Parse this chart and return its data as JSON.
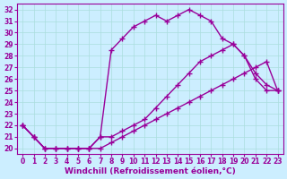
{
  "xlabel": "Windchill (Refroidissement éolien,°C)",
  "bg_color": "#cceeff",
  "line_color": "#990099",
  "grid_color": "#aadddd",
  "xlim": [
    -0.5,
    23.5
  ],
  "ylim": [
    19.5,
    32.5
  ],
  "yticks": [
    20,
    21,
    22,
    23,
    24,
    25,
    26,
    27,
    28,
    29,
    30,
    31,
    32
  ],
  "xticks": [
    0,
    1,
    2,
    3,
    4,
    5,
    6,
    7,
    8,
    9,
    10,
    11,
    12,
    13,
    14,
    15,
    16,
    17,
    18,
    19,
    20,
    21,
    22,
    23
  ],
  "line1_x": [
    0,
    1,
    2,
    3,
    4,
    5,
    6,
    7,
    8,
    9,
    10,
    11,
    12,
    13,
    14,
    15,
    16,
    17,
    18,
    19,
    20,
    21,
    22,
    23
  ],
  "line1_y": [
    22,
    21,
    20,
    20,
    20,
    20,
    20,
    21,
    28.5,
    29.5,
    30.5,
    31,
    31.5,
    31,
    31.5,
    32,
    31.5,
    31,
    29.5,
    29,
    28,
    26.5,
    25.5,
    25
  ],
  "line2_x": [
    0,
    1,
    2,
    3,
    4,
    5,
    6,
    7,
    8,
    9,
    10,
    11,
    12,
    13,
    14,
    15,
    16,
    17,
    18,
    19,
    20,
    21,
    22,
    23
  ],
  "line2_y": [
    22,
    21,
    20,
    20,
    20,
    20,
    20,
    21,
    21,
    21.5,
    22,
    22.5,
    23.5,
    24.5,
    25.5,
    26.5,
    27.5,
    28,
    28.5,
    29,
    28,
    26,
    25,
    25
  ],
  "line3_x": [
    0,
    1,
    2,
    3,
    4,
    5,
    6,
    7,
    8,
    9,
    10,
    11,
    12,
    13,
    14,
    15,
    16,
    17,
    18,
    19,
    20,
    21,
    22,
    23
  ],
  "line3_y": [
    22,
    21,
    20,
    20,
    20,
    20,
    20,
    20,
    20.5,
    21,
    21.5,
    22,
    22.5,
    23,
    23.5,
    24,
    24.5,
    25,
    25.5,
    26,
    26.5,
    27,
    27.5,
    25
  ],
  "marker": "+",
  "markersize": 4,
  "linewidth": 1.0,
  "tick_fontsize": 5.5,
  "xlabel_fontsize": 6.5
}
